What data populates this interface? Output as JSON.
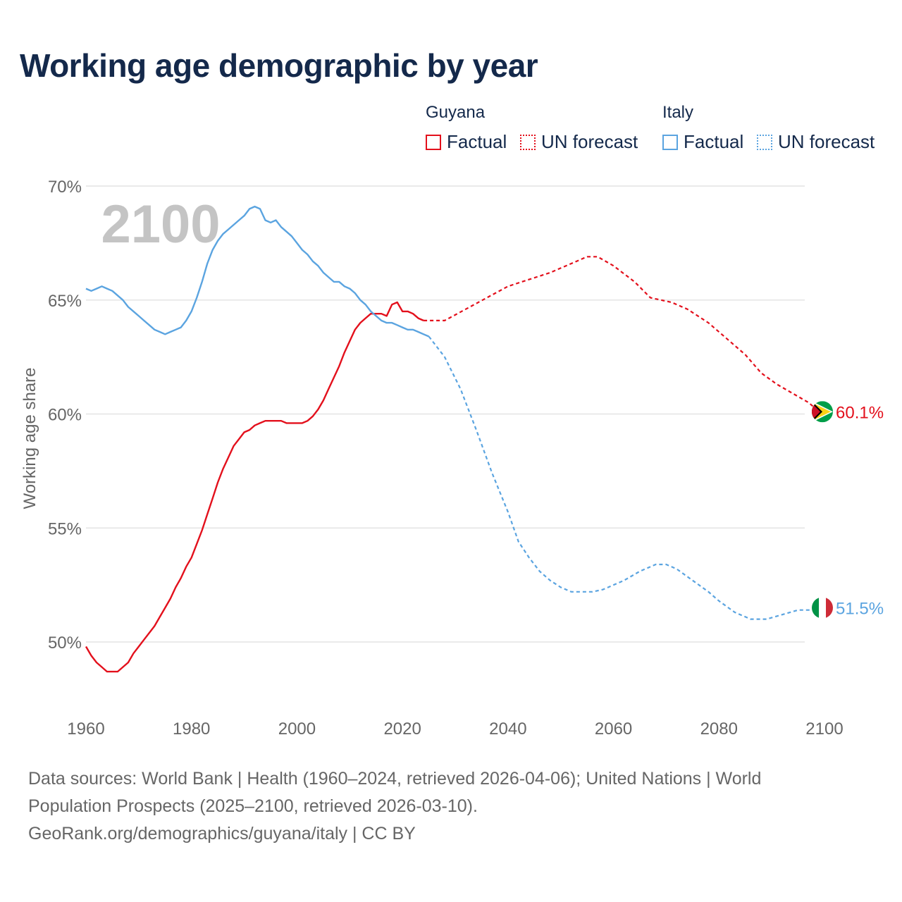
{
  "title": "Working age demographic by year",
  "legend": {
    "groups": [
      {
        "name": "Guyana",
        "factual_label": "Factual",
        "forecast_label": "UN forecast",
        "color": "#e3101c"
      },
      {
        "name": "Italy",
        "factual_label": "Factual",
        "forecast_label": "UN forecast",
        "color": "#5ba4e0"
      }
    ]
  },
  "source": {
    "line1": "Data sources: World Bank | Health (1960–2024, retrieved 2026-04-06); United Nations | World Population Prospects (2025–2100, retrieved 2026-03-10).",
    "line2": "GeoRank.org/demographics/guyana/italy | CC BY"
  },
  "chart_data": {
    "type": "line",
    "title": "Working age demographic by year",
    "xlabel": "",
    "ylabel": "Working age share",
    "year_overlay": "2100",
    "xlim": [
      1960,
      2100
    ],
    "ylim": [
      47,
      70
    ],
    "x_ticks": [
      1960,
      1980,
      2000,
      2020,
      2040,
      2060,
      2080,
      2100
    ],
    "y_ticks": [
      50,
      55,
      60,
      65,
      70
    ],
    "y_tick_labels": [
      "50%",
      "55%",
      "60%",
      "65%",
      "70%"
    ],
    "grid": true,
    "legend_position": "top-right",
    "series": [
      {
        "name": "Guyana",
        "color": "#e3101c",
        "end_label": "60.1%",
        "factual": [
          [
            1960,
            49.8
          ],
          [
            1961,
            49.4
          ],
          [
            1962,
            49.1
          ],
          [
            1963,
            48.9
          ],
          [
            1964,
            48.7
          ],
          [
            1965,
            48.7
          ],
          [
            1966,
            48.7
          ],
          [
            1967,
            48.9
          ],
          [
            1968,
            49.1
          ],
          [
            1969,
            49.5
          ],
          [
            1970,
            49.8
          ],
          [
            1971,
            50.1
          ],
          [
            1972,
            50.4
          ],
          [
            1973,
            50.7
          ],
          [
            1974,
            51.1
          ],
          [
            1975,
            51.5
          ],
          [
            1976,
            51.9
          ],
          [
            1977,
            52.4
          ],
          [
            1978,
            52.8
          ],
          [
            1979,
            53.3
          ],
          [
            1980,
            53.7
          ],
          [
            1981,
            54.3
          ],
          [
            1982,
            54.9
          ],
          [
            1983,
            55.6
          ],
          [
            1984,
            56.3
          ],
          [
            1985,
            57.0
          ],
          [
            1986,
            57.6
          ],
          [
            1987,
            58.1
          ],
          [
            1988,
            58.6
          ],
          [
            1989,
            58.9
          ],
          [
            1990,
            59.2
          ],
          [
            1991,
            59.3
          ],
          [
            1992,
            59.5
          ],
          [
            1993,
            59.6
          ],
          [
            1994,
            59.7
          ],
          [
            1995,
            59.7
          ],
          [
            1996,
            59.7
          ],
          [
            1997,
            59.7
          ],
          [
            1998,
            59.6
          ],
          [
            1999,
            59.6
          ],
          [
            2000,
            59.6
          ],
          [
            2001,
            59.6
          ],
          [
            2002,
            59.7
          ],
          [
            2003,
            59.9
          ],
          [
            2004,
            60.2
          ],
          [
            2005,
            60.6
          ],
          [
            2006,
            61.1
          ],
          [
            2007,
            61.6
          ],
          [
            2008,
            62.1
          ],
          [
            2009,
            62.7
          ],
          [
            2010,
            63.2
          ],
          [
            2011,
            63.7
          ],
          [
            2012,
            64.0
          ],
          [
            2013,
            64.2
          ],
          [
            2014,
            64.4
          ],
          [
            2015,
            64.4
          ],
          [
            2016,
            64.4
          ],
          [
            2017,
            64.3
          ],
          [
            2018,
            64.8
          ],
          [
            2019,
            64.9
          ],
          [
            2020,
            64.5
          ],
          [
            2021,
            64.5
          ],
          [
            2022,
            64.4
          ],
          [
            2023,
            64.2
          ],
          [
            2024,
            64.1
          ]
        ],
        "forecast": [
          [
            2024,
            64.1
          ],
          [
            2028,
            64.1
          ],
          [
            2032,
            64.6
          ],
          [
            2036,
            65.1
          ],
          [
            2040,
            65.6
          ],
          [
            2044,
            65.9
          ],
          [
            2048,
            66.2
          ],
          [
            2052,
            66.6
          ],
          [
            2055,
            66.9
          ],
          [
            2057,
            66.9
          ],
          [
            2060,
            66.5
          ],
          [
            2064,
            65.8
          ],
          [
            2067,
            65.1
          ],
          [
            2071,
            64.9
          ],
          [
            2074,
            64.6
          ],
          [
            2078,
            64.0
          ],
          [
            2082,
            63.2
          ],
          [
            2085,
            62.6
          ],
          [
            2088,
            61.8
          ],
          [
            2091,
            61.3
          ],
          [
            2094,
            60.9
          ],
          [
            2097,
            60.5
          ],
          [
            2099,
            60.1
          ],
          [
            2100,
            60.1
          ]
        ]
      },
      {
        "name": "Italy",
        "color": "#5ba4e0",
        "end_label": "51.5%",
        "factual": [
          [
            1960,
            65.5
          ],
          [
            1961,
            65.4
          ],
          [
            1962,
            65.5
          ],
          [
            1963,
            65.6
          ],
          [
            1964,
            65.5
          ],
          [
            1965,
            65.4
          ],
          [
            1966,
            65.2
          ],
          [
            1967,
            65.0
          ],
          [
            1968,
            64.7
          ],
          [
            1969,
            64.5
          ],
          [
            1970,
            64.3
          ],
          [
            1971,
            64.1
          ],
          [
            1972,
            63.9
          ],
          [
            1973,
            63.7
          ],
          [
            1974,
            63.6
          ],
          [
            1975,
            63.5
          ],
          [
            1976,
            63.6
          ],
          [
            1977,
            63.7
          ],
          [
            1978,
            63.8
          ],
          [
            1979,
            64.1
          ],
          [
            1980,
            64.5
          ],
          [
            1981,
            65.1
          ],
          [
            1982,
            65.8
          ],
          [
            1983,
            66.6
          ],
          [
            1984,
            67.2
          ],
          [
            1985,
            67.6
          ],
          [
            1986,
            67.9
          ],
          [
            1987,
            68.1
          ],
          [
            1988,
            68.3
          ],
          [
            1989,
            68.5
          ],
          [
            1990,
            68.7
          ],
          [
            1991,
            69.0
          ],
          [
            1992,
            69.1
          ],
          [
            1993,
            69.0
          ],
          [
            1994,
            68.5
          ],
          [
            1995,
            68.4
          ],
          [
            1996,
            68.5
          ],
          [
            1997,
            68.2
          ],
          [
            1998,
            68.0
          ],
          [
            1999,
            67.8
          ],
          [
            2000,
            67.5
          ],
          [
            2001,
            67.2
          ],
          [
            2002,
            67.0
          ],
          [
            2003,
            66.7
          ],
          [
            2004,
            66.5
          ],
          [
            2005,
            66.2
          ],
          [
            2006,
            66.0
          ],
          [
            2007,
            65.8
          ],
          [
            2008,
            65.8
          ],
          [
            2009,
            65.6
          ],
          [
            2010,
            65.5
          ],
          [
            2011,
            65.3
          ],
          [
            2012,
            65.0
          ],
          [
            2013,
            64.8
          ],
          [
            2014,
            64.5
          ],
          [
            2015,
            64.3
          ],
          [
            2016,
            64.1
          ],
          [
            2017,
            64.0
          ],
          [
            2018,
            64.0
          ],
          [
            2019,
            63.9
          ],
          [
            2020,
            63.8
          ],
          [
            2021,
            63.7
          ],
          [
            2022,
            63.7
          ],
          [
            2023,
            63.6
          ],
          [
            2024,
            63.5
          ],
          [
            2025,
            63.4
          ]
        ],
        "forecast": [
          [
            2025,
            63.4
          ],
          [
            2028,
            62.5
          ],
          [
            2031,
            61.1
          ],
          [
            2034,
            59.3
          ],
          [
            2037,
            57.4
          ],
          [
            2040,
            55.7
          ],
          [
            2042,
            54.4
          ],
          [
            2044,
            53.7
          ],
          [
            2046,
            53.1
          ],
          [
            2048,
            52.7
          ],
          [
            2050,
            52.4
          ],
          [
            2052,
            52.2
          ],
          [
            2056,
            52.2
          ],
          [
            2058,
            52.3
          ],
          [
            2062,
            52.7
          ],
          [
            2065,
            53.1
          ],
          [
            2068,
            53.4
          ],
          [
            2070,
            53.4
          ],
          [
            2072,
            53.2
          ],
          [
            2075,
            52.7
          ],
          [
            2078,
            52.2
          ],
          [
            2080,
            51.8
          ],
          [
            2083,
            51.3
          ],
          [
            2086,
            51.0
          ],
          [
            2089,
            51.0
          ],
          [
            2092,
            51.2
          ],
          [
            2095,
            51.4
          ],
          [
            2098,
            51.4
          ],
          [
            2100,
            51.5
          ]
        ]
      }
    ]
  }
}
